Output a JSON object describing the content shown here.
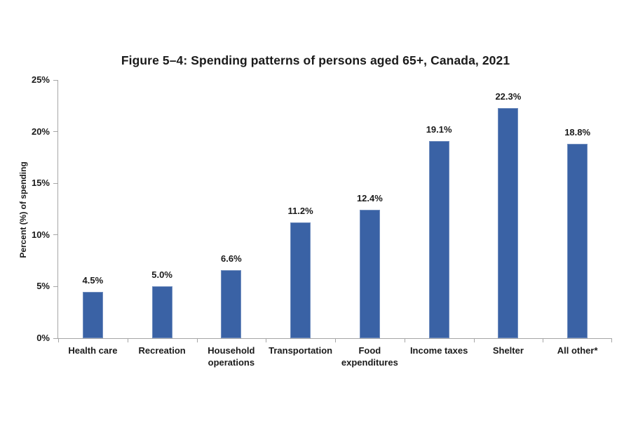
{
  "page": {
    "background": "#ffffff"
  },
  "chart_data": {
    "type": "bar",
    "title": "Figure 5–4: Spending patterns of persons aged 65+, Canada, 2021",
    "xlabel": "",
    "ylabel": "Percent (%) of spending",
    "categories": [
      "Health care",
      "Recreation",
      "Household operations",
      "Transportation",
      "Food expenditures",
      "Income taxes",
      "Shelter",
      "All other*"
    ],
    "values": [
      4.5,
      5.0,
      6.6,
      11.2,
      12.4,
      19.1,
      22.3,
      18.8
    ],
    "value_labels": [
      "4.5%",
      "5.0%",
      "6.6%",
      "11.2%",
      "12.4%",
      "19.1%",
      "22.3%",
      "18.8%"
    ],
    "yticks": [
      0,
      5,
      10,
      15,
      20,
      25
    ],
    "ytick_labels": [
      "0%",
      "5%",
      "10%",
      "15%",
      "20%",
      "25%"
    ],
    "ylim": [
      0,
      25
    ],
    "grid": false,
    "legend": "none",
    "bar_color": "#3a62a5",
    "axis_color": "#a6a6a6",
    "text_color": "#1a1a1a"
  }
}
